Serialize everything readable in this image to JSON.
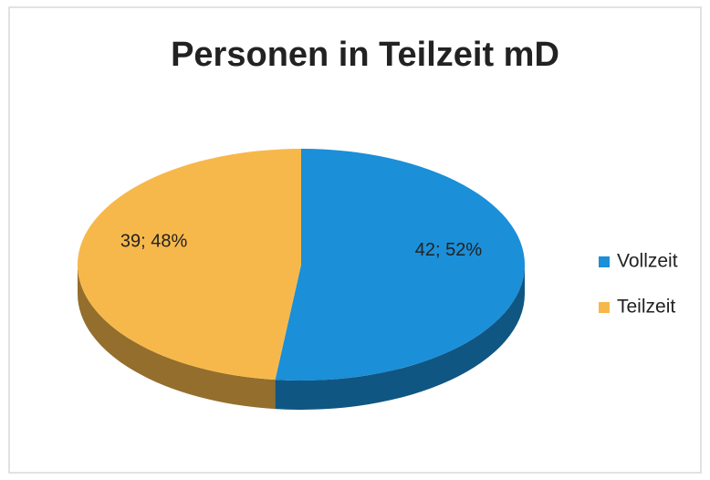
{
  "chart_data": {
    "type": "pie",
    "title": "Personen in Teilzeit mD",
    "categories": [
      "Vollzeit",
      "Teilzeit"
    ],
    "values": [
      42,
      39
    ],
    "value_labels": [
      "42; 52%",
      "39; 48%"
    ],
    "colors": [
      "#1b8fd8",
      "#f7b84b"
    ],
    "legend": "right"
  }
}
